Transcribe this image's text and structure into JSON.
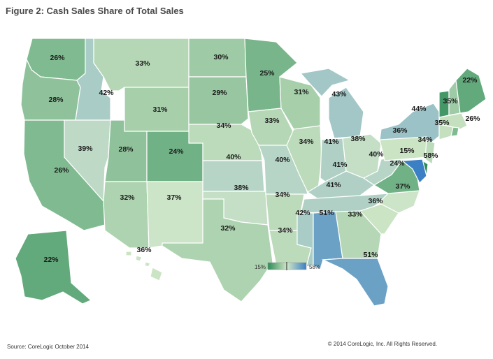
{
  "title": "Figure 2: Cash Sales Share of Total Sales",
  "source": "Source: CoreLogic October 2014",
  "copyright": "© 2014 CoreLogic, Inc. All Rights Reserved.",
  "legend": {
    "min_label": "15%",
    "max_label": "58%",
    "min_value": 15,
    "max_value": 58,
    "colors": [
      "#2e8b57",
      "#cfe6c7",
      "#3b7fc4"
    ]
  },
  "states": [
    {
      "code": "WA",
      "label": "26%",
      "value": 26
    },
    {
      "code": "OR",
      "label": "28%",
      "value": 28
    },
    {
      "code": "CA",
      "label": "26%",
      "value": 26
    },
    {
      "code": "ID",
      "label": "42%",
      "value": 42
    },
    {
      "code": "NV",
      "label": "39%",
      "value": 39
    },
    {
      "code": "MT",
      "label": "33%",
      "value": 33
    },
    {
      "code": "WY",
      "label": "31%",
      "value": 31
    },
    {
      "code": "UT",
      "label": "28%",
      "value": 28
    },
    {
      "code": "AZ",
      "label": "32%",
      "value": 32
    },
    {
      "code": "CO",
      "label": "24%",
      "value": 24
    },
    {
      "code": "NM",
      "label": "37%",
      "value": 37
    },
    {
      "code": "ND",
      "label": "30%",
      "value": 30
    },
    {
      "code": "SD",
      "label": "29%",
      "value": 29
    },
    {
      "code": "NE",
      "label": "34%",
      "value": 34
    },
    {
      "code": "KS",
      "label": "40%",
      "value": 40
    },
    {
      "code": "OK",
      "label": "38%",
      "value": 38
    },
    {
      "code": "TX",
      "label": "32%",
      "value": 32
    },
    {
      "code": "MN",
      "label": "25%",
      "value": 25
    },
    {
      "code": "IA",
      "label": "33%",
      "value": 33
    },
    {
      "code": "MO",
      "label": "40%",
      "value": 40
    },
    {
      "code": "AR",
      "label": "34%",
      "value": 34
    },
    {
      "code": "LA",
      "label": "34%",
      "value": 34
    },
    {
      "code": "WI",
      "label": "31%",
      "value": 31
    },
    {
      "code": "IL",
      "label": "34%",
      "value": 34
    },
    {
      "code": "MI",
      "label": "43%",
      "value": 43
    },
    {
      "code": "IN",
      "label": "41%",
      "value": 41
    },
    {
      "code": "OH",
      "label": "38%",
      "value": 38
    },
    {
      "code": "KY",
      "label": "41%",
      "value": 41
    },
    {
      "code": "TN",
      "label": "41%",
      "value": 41
    },
    {
      "code": "MS",
      "label": "42%",
      "value": 42
    },
    {
      "code": "AL",
      "label": "51%",
      "value": 51
    },
    {
      "code": "GA",
      "label": "33%",
      "value": 33
    },
    {
      "code": "FL",
      "label": "51%",
      "value": 51
    },
    {
      "code": "SC",
      "label": "36%",
      "value": 36
    },
    {
      "code": "NC",
      "label": "37%",
      "value": 37
    },
    {
      "code": "VA",
      "label": "24%",
      "value": 24
    },
    {
      "code": "WV",
      "label": "40%",
      "value": 40
    },
    {
      "code": "PA",
      "label": "36%",
      "value": 36
    },
    {
      "code": "NY",
      "label": "44%",
      "value": 44
    },
    {
      "code": "NJ",
      "label": "34%",
      "value": 34
    },
    {
      "code": "DE",
      "label": "15%",
      "value": 15
    },
    {
      "code": "MD",
      "label": "58%",
      "value": 58
    },
    {
      "code": "CT",
      "label": "35%",
      "value": 35
    },
    {
      "code": "RI",
      "label": "26%",
      "value": 26
    },
    {
      "code": "MA",
      "label": "35%",
      "value": 35
    },
    {
      "code": "VT",
      "label": "",
      "value": 18
    },
    {
      "code": "NH",
      "label": "",
      "value": 30
    },
    {
      "code": "ME",
      "label": "22%",
      "value": 22
    },
    {
      "code": "AK",
      "label": "22%",
      "value": 22
    },
    {
      "code": "HI",
      "label": "36%",
      "value": 36
    }
  ]
}
